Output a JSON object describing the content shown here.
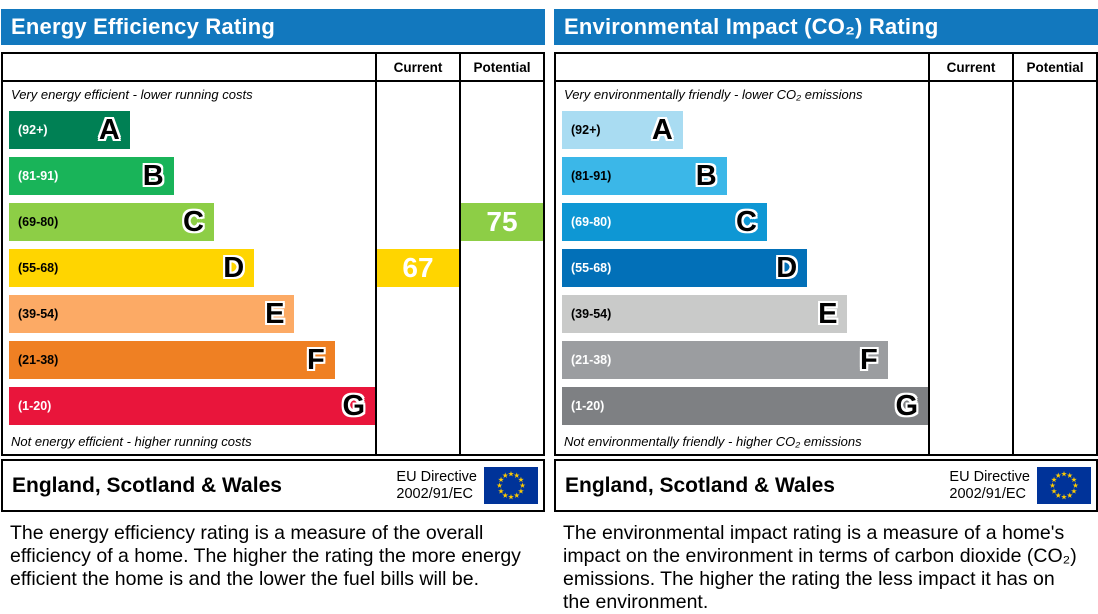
{
  "panels": [
    {
      "title": "Energy Efficiency Rating",
      "columns": {
        "current": "Current",
        "potential": "Potential"
      },
      "top_caption": "Very energy efficient - lower running costs",
      "bottom_caption": "Not energy efficient - higher running costs",
      "bands": [
        {
          "letter": "A",
          "range": "(92+)",
          "color": "#008054",
          "range_color": "#ffffff",
          "width_pct": 33
        },
        {
          "letter": "B",
          "range": "(81-91)",
          "color": "#19b459",
          "range_color": "#ffffff",
          "width_pct": 45
        },
        {
          "letter": "C",
          "range": "(69-80)",
          "color": "#8dce46",
          "range_color": "#000000",
          "width_pct": 56
        },
        {
          "letter": "D",
          "range": "(55-68)",
          "color": "#ffd500",
          "range_color": "#000000",
          "width_pct": 67
        },
        {
          "letter": "E",
          "range": "(39-54)",
          "color": "#fcaa65",
          "range_color": "#000000",
          "width_pct": 78
        },
        {
          "letter": "F",
          "range": "(21-38)",
          "color": "#ef8023",
          "range_color": "#000000",
          "width_pct": 89
        },
        {
          "letter": "G",
          "range": "(1-20)",
          "color": "#e9153b",
          "range_color": "#ffffff",
          "width_pct": 100
        }
      ],
      "current": {
        "value": "67",
        "band": "D",
        "color": "#ffd500"
      },
      "potential": {
        "value": "75",
        "band": "C",
        "color": "#8dce46"
      },
      "footer": {
        "region": "England, Scotland & Wales",
        "directive": [
          "EU Directive",
          "2002/91/EC"
        ]
      },
      "description": "The energy efficiency rating is a measure of the overall efficiency of a home. The higher the rating the more energy efficient the home is and the lower the fuel bills will be."
    },
    {
      "title": "Environmental Impact (CO₂) Rating",
      "columns": {
        "current": "Current",
        "potential": "Potential"
      },
      "top_caption": "Very environmentally friendly - lower CO₂ emissions",
      "bottom_caption": "Not environmentally friendly - higher CO₂ emissions",
      "bands": [
        {
          "letter": "A",
          "range": "(92+)",
          "color": "#a9dcf2",
          "range_color": "#000000",
          "width_pct": 33
        },
        {
          "letter": "B",
          "range": "(81-91)",
          "color": "#3bb7e8",
          "range_color": "#000000",
          "width_pct": 45
        },
        {
          "letter": "C",
          "range": "(69-80)",
          "color": "#0e97d4",
          "range_color": "#ffffff",
          "width_pct": 56
        },
        {
          "letter": "D",
          "range": "(55-68)",
          "color": "#0270b8",
          "range_color": "#ffffff",
          "width_pct": 67
        },
        {
          "letter": "E",
          "range": "(39-54)",
          "color": "#c9cac9",
          "range_color": "#000000",
          "width_pct": 78
        },
        {
          "letter": "F",
          "range": "(21-38)",
          "color": "#9b9da0",
          "range_color": "#ffffff",
          "width_pct": 89
        },
        {
          "letter": "G",
          "range": "(1-20)",
          "color": "#7e8083",
          "range_color": "#ffffff",
          "width_pct": 100
        }
      ],
      "current": null,
      "potential": null,
      "footer": {
        "region": "England, Scotland & Wales",
        "directive": [
          "EU Directive",
          "2002/91/EC"
        ]
      },
      "description": "The environmental impact rating is a measure of a home's impact on the environment in terms of carbon dioxide (CO₂) emissions. The higher the rating the less impact it has on the environment."
    }
  ],
  "colors": {
    "header_blue": "#1278be",
    "eu_flag_blue": "#003399",
    "eu_flag_star": "#ffcc00"
  },
  "chart_data": [
    {
      "type": "bar",
      "title": "Energy Efficiency Rating",
      "categories": [
        "A (92+)",
        "B (81-91)",
        "C (69-80)",
        "D (55-68)",
        "E (39-54)",
        "F (21-38)",
        "G (1-20)"
      ],
      "values": [
        33,
        45,
        56,
        67,
        78,
        89,
        100
      ],
      "current_rating": 67,
      "current_band": "D",
      "potential_rating": 75,
      "potential_band": "C",
      "xlabel": "",
      "ylabel": "",
      "legend": [
        "Current",
        "Potential"
      ],
      "region": "England, Scotland & Wales",
      "directive": "EU Directive 2002/91/EC"
    },
    {
      "type": "bar",
      "title": "Environmental Impact (CO₂) Rating",
      "categories": [
        "A (92+)",
        "B (81-91)",
        "C (69-80)",
        "D (55-68)",
        "E (39-54)",
        "F (21-38)",
        "G (1-20)"
      ],
      "values": [
        33,
        45,
        56,
        67,
        78,
        89,
        100
      ],
      "current_rating": null,
      "current_band": null,
      "potential_rating": null,
      "potential_band": null,
      "xlabel": "",
      "ylabel": "",
      "legend": [
        "Current",
        "Potential"
      ],
      "region": "England, Scotland & Wales",
      "directive": "EU Directive 2002/91/EC"
    }
  ]
}
